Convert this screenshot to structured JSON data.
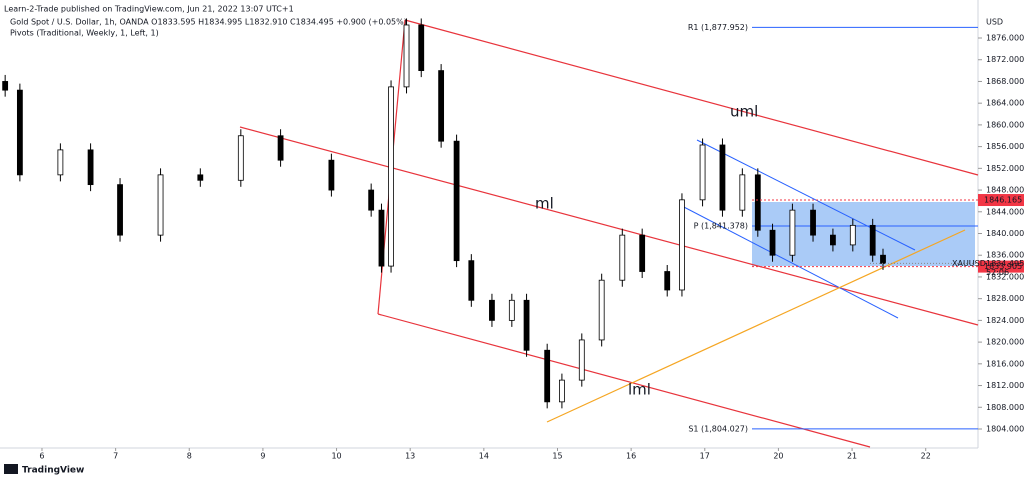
{
  "header": {
    "publisher": "Learn-2-Trade published on TradingView.com, Jun 21, 2022 13:07 UTC+1",
    "symbol_line": "Gold Spot / U.S. Dollar, 1h, OANDA  O1833.595 H1834.995 L1832.910 C1834.495 +0.900 (+0.05%)",
    "indicator": "Pivots (Traditional, Weekly, 1, Left, 1)"
  },
  "chart_data": {
    "type": "candlestick",
    "currency": "USD",
    "x": [
      -0.5,
      -0.3,
      0.25,
      0.66,
      1.06,
      1.61,
      2.15,
      2.7,
      3.24,
      3.93,
      4.47,
      4.61,
      4.74,
      4.95,
      5.15,
      5.42,
      5.63,
      5.83,
      6.11,
      6.38,
      6.58,
      6.86,
      7.06,
      7.33,
      7.6,
      7.88,
      8.15,
      8.49,
      8.69,
      8.97,
      9.24,
      9.51,
      9.72,
      9.92,
      10.19,
      10.47,
      10.74,
      11.01,
      11.28,
      11.42
    ],
    "open": [
      1868,
      1866.4,
      1850.8,
      1855.4,
      1849,
      1839.7,
      1850.8,
      1849.8,
      1858,
      1853.5,
      1848,
      1844.3,
      1834,
      1867,
      1878.4,
      1870,
      1857,
      1835,
      1827.7,
      1824,
      1827.7,
      1818.5,
      1809,
      1813,
      1820.4,
      1831.4,
      1839.7,
      1833,
      1829.6,
      1846.2,
      1856.3,
      1844.3,
      1850.8,
      1840.6,
      1836,
      1844.3,
      1839.7,
      1837.9,
      1841.5,
      1836
    ],
    "high": [
      1869.2,
      1867.6,
      1856.6,
      1856.6,
      1850.2,
      1852,
      1852,
      1859.2,
      1859.2,
      1854.7,
      1849.2,
      1845.5,
      1868.2,
      1879.6,
      1879.6,
      1871.2,
      1858.2,
      1836.2,
      1828.9,
      1828.9,
      1828.9,
      1819.7,
      1814.2,
      1821.6,
      1832.6,
      1840.9,
      1840.9,
      1834.2,
      1847.4,
      1857.5,
      1857.5,
      1852,
      1852,
      1841.8,
      1845.5,
      1845.5,
      1840.9,
      1842.7,
      1842.7,
      1837.2
    ],
    "low": [
      1865.2,
      1849.6,
      1849.6,
      1847.8,
      1838.5,
      1838.5,
      1848.6,
      1848.6,
      1852.3,
      1846.8,
      1843.1,
      1832.8,
      1832.8,
      1865.8,
      1868.8,
      1855.8,
      1833.8,
      1826.5,
      1822.8,
      1822.8,
      1817.3,
      1807.8,
      1807.8,
      1811.8,
      1819.2,
      1830.2,
      1831.8,
      1828.4,
      1828.4,
      1845,
      1843.1,
      1843.1,
      1839.4,
      1834.8,
      1834.8,
      1838.5,
      1836.7,
      1836.7,
      1834.8,
      1833.3
    ],
    "close": [
      1866.4,
      1850.8,
      1855.4,
      1849,
      1839.7,
      1850.8,
      1849.8,
      1858,
      1853.5,
      1848,
      1844.3,
      1834,
      1867,
      1878.4,
      1870,
      1857,
      1835,
      1827.7,
      1824,
      1827.7,
      1818.5,
      1809,
      1813,
      1820.4,
      1831.4,
      1839.7,
      1833,
      1829.6,
      1846.2,
      1856.3,
      1844.3,
      1850.8,
      1840.6,
      1836,
      1844.3,
      1839.7,
      1837.9,
      1841.5,
      1836,
      1834.5
    ],
    "up_color": "#ffffff",
    "down_color": "#000000",
    "xlim": [
      -0.57,
      12.71
    ],
    "ylim": [
      1800.5,
      1883
    ],
    "xticks": [
      {
        "value": 0,
        "label": "6"
      },
      {
        "value": 1,
        "label": "7"
      },
      {
        "value": 2,
        "label": "8"
      },
      {
        "value": 3,
        "label": "9"
      },
      {
        "value": 4,
        "label": "10"
      },
      {
        "value": 5,
        "label": "13"
      },
      {
        "value": 6,
        "label": "14"
      },
      {
        "value": 7,
        "label": "15"
      },
      {
        "value": 8,
        "label": "16"
      },
      {
        "value": 9,
        "label": "17"
      },
      {
        "value": 10,
        "label": "20"
      },
      {
        "value": 11,
        "label": "21"
      },
      {
        "value": 12,
        "label": "22"
      }
    ],
    "yticks": [
      {
        "value": 1804,
        "label": "1804.000"
      },
      {
        "value": 1808,
        "label": "1808.000"
      },
      {
        "value": 1812,
        "label": "1812.000"
      },
      {
        "value": 1816,
        "label": "1816.000"
      },
      {
        "value": 1820,
        "label": "1820.000"
      },
      {
        "value": 1824,
        "label": "1824.000"
      },
      {
        "value": 1828,
        "label": "1828.000"
      },
      {
        "value": 1832,
        "label": "1832.000"
      },
      {
        "value": 1836,
        "label": "1836.000"
      },
      {
        "value": 1840,
        "label": "1840.000"
      },
      {
        "value": 1844,
        "label": "1844.000"
      },
      {
        "value": 1848,
        "label": "1848.000"
      },
      {
        "value": 1852,
        "label": "1852.000"
      },
      {
        "value": 1856,
        "label": "1856.000"
      },
      {
        "value": 1860,
        "label": "1860.000"
      },
      {
        "value": 1864,
        "label": "1864.000"
      },
      {
        "value": 1868,
        "label": "1868.000"
      },
      {
        "value": 1872,
        "label": "1872.000"
      },
      {
        "value": 1876,
        "label": "1876.000"
      }
    ],
    "levels": [
      {
        "value": 1877.952,
        "label": "R1 (1,877.952)"
      },
      {
        "value": 1841.378,
        "label": "P (1,841.378)"
      },
      {
        "value": 1804.027,
        "label": "S1 (1,804.027)"
      }
    ],
    "level_color": "#2962ff",
    "price_tags": [
      1846.165,
      1833.905
    ],
    "price_tag_color": "#f23645",
    "current": {
      "symbol": "XAUUSD",
      "price": 1834.495,
      "countdown": "52:06"
    },
    "annotations": {
      "upper": "uml",
      "median": "ml",
      "lower": "lml"
    }
  },
  "footer": "TradingView"
}
